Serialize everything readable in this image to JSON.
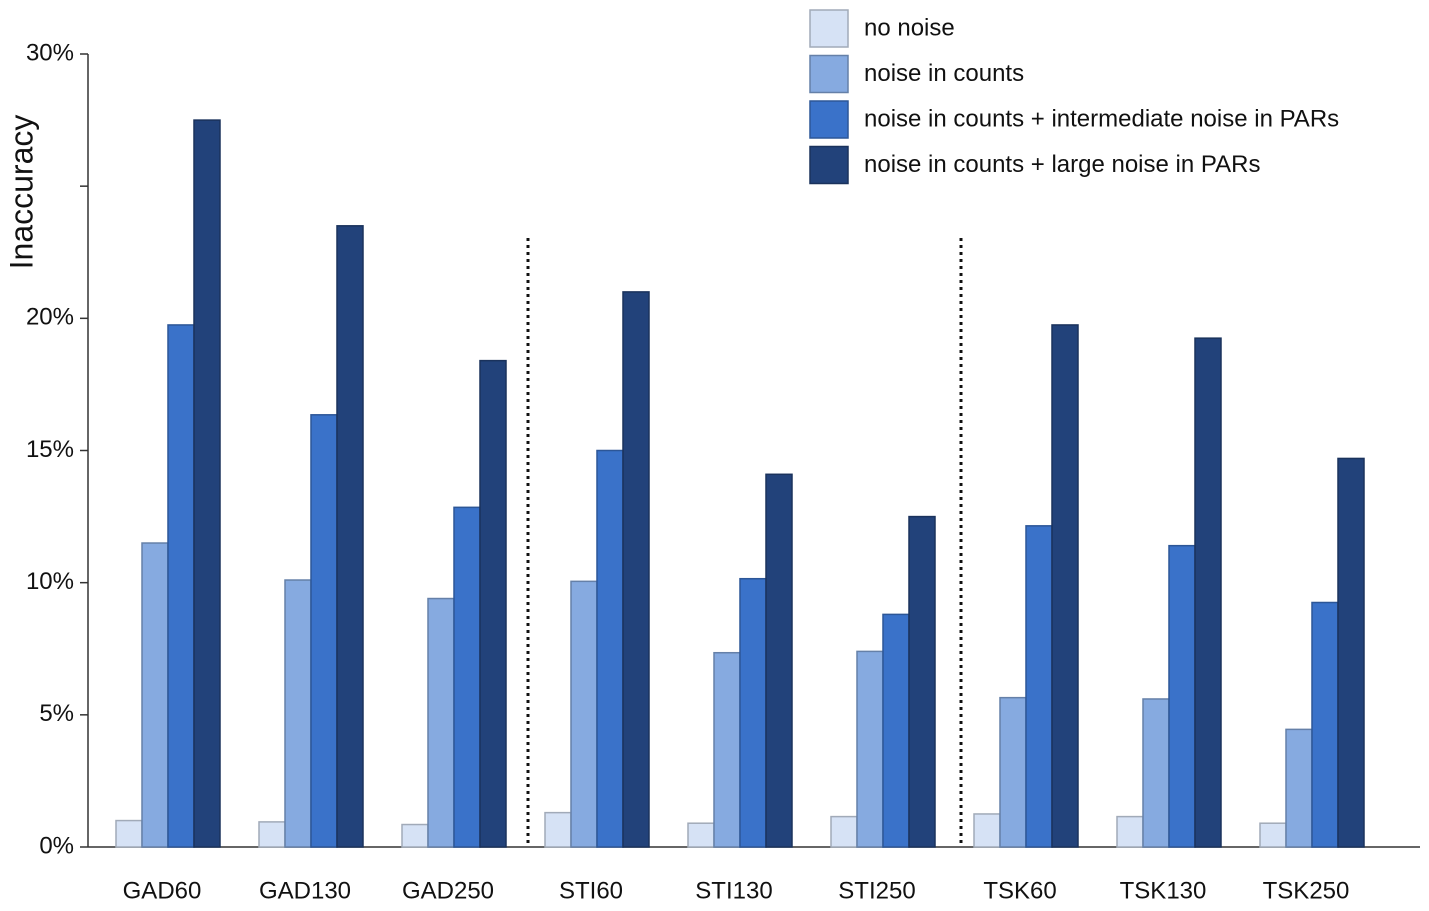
{
  "chart_data": {
    "type": "bar",
    "y_label": "Inaccuracy",
    "categories": [
      "GAD60",
      "GAD130",
      "GAD250",
      "STI60",
      "STI130",
      "STI250",
      "TSK60",
      "TSK130",
      "TSK250"
    ],
    "series": [
      {
        "name": "no noise",
        "color": "#d6e2f5",
        "values": [
          1.0,
          0.95,
          0.85,
          1.3,
          0.9,
          1.15,
          1.25,
          1.15,
          0.9
        ]
      },
      {
        "name": "noise in counts",
        "color": "#86aae0",
        "values": [
          11.5,
          10.1,
          9.4,
          10.05,
          7.35,
          7.4,
          5.65,
          5.6,
          4.45
        ]
      },
      {
        "name": "noise in counts + intermediate noise in PARs",
        "color": "#3a72c9",
        "values": [
          19.75,
          16.35,
          12.85,
          15.0,
          10.15,
          8.8,
          12.15,
          11.4,
          9.25
        ]
      },
      {
        "name": "noise in counts + large noise in PARs",
        "color": "#22427a",
        "values": [
          27.5,
          23.5,
          18.4,
          21.0,
          14.1,
          12.5,
          19.75,
          19.25,
          14.7
        ]
      }
    ],
    "ylim": [
      0,
      30
    ],
    "yticks": [
      {
        "value": 0,
        "label": "0%"
      },
      {
        "value": 5,
        "label": "5%"
      },
      {
        "value": 10,
        "label": "10%"
      },
      {
        "value": 15,
        "label": "15%"
      },
      {
        "value": 20,
        "label": "20%"
      },
      {
        "value": 30,
        "label": "30%"
      }
    ],
    "minor_yticks": [
      25
    ],
    "legend": "top-right"
  }
}
